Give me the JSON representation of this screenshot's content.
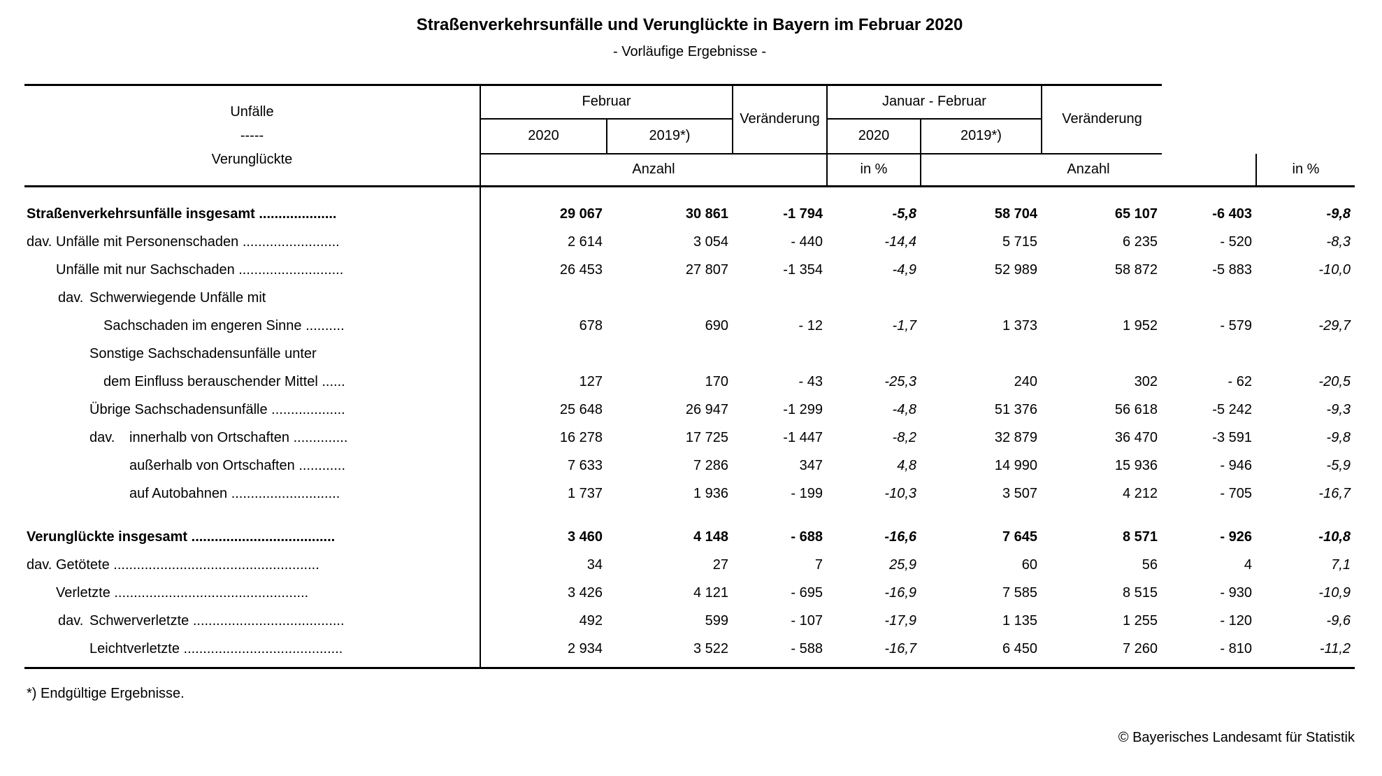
{
  "title": "Straßenverkehrsunfälle und Verunglückte in Bayern im Februar 2020",
  "subtitle": "- Vorläufige Ergebnisse -",
  "table": {
    "header": {
      "stub": [
        "Unfälle",
        "-----",
        "Verunglückte"
      ],
      "group_februar": "Februar",
      "group_januar_februar": "Januar - Februar",
      "group_veraenderung": "Veränderung",
      "years": [
        "2020",
        "2019*)"
      ],
      "unit_anzahl": "Anzahl",
      "unit_in_percent": "in %"
    },
    "rows": [
      {
        "bold": true,
        "prefix": "",
        "prefix_indent": "i0",
        "label": "Straßenverkehrsunfälle insgesamt ....................",
        "indent": "i0",
        "label2": null,
        "indent2": null,
        "values": [
          "29 067",
          "30 861",
          "-1 794",
          "-5,8",
          "58 704",
          "65 107",
          "-6 403",
          "-9,8"
        ]
      },
      {
        "bold": false,
        "prefix": "dav.",
        "prefix_indent": "i0",
        "label": "Unfälle mit Personenschaden .........................",
        "indent": "i1",
        "label2": null,
        "indent2": null,
        "values": [
          "2 614",
          "3 054",
          "- 440",
          "-14,4",
          "5 715",
          "6 235",
          "- 520",
          "-8,3"
        ]
      },
      {
        "bold": false,
        "prefix": "",
        "prefix_indent": "i1",
        "label": "Unfälle mit nur Sachschaden ...........................",
        "indent": "i1",
        "label2": null,
        "indent2": null,
        "values": [
          "26 453",
          "27 807",
          "-1 354",
          "-4,9",
          "52 989",
          "58 872",
          "-5 883",
          "-10,0"
        ]
      },
      {
        "bold": false,
        "prefix": "dav.",
        "prefix_indent": "i1",
        "label": "Schwerwiegende Unfälle mit",
        "indent": "i2",
        "label2": "Sachschaden im engeren Sinne ..........",
        "indent2": "i2b",
        "values": [
          "678",
          "690",
          "- 12",
          "-1,7",
          "1 373",
          "1 952",
          "- 579",
          "-29,7"
        ]
      },
      {
        "bold": false,
        "prefix": "",
        "prefix_indent": "i2",
        "label": "Sonstige Sachschadensunfälle unter",
        "indent": "i2",
        "label2": "dem Einfluss berauschender Mittel ......",
        "indent2": "i2b",
        "values": [
          "127",
          "170",
          "- 43",
          "-25,3",
          "240",
          "302",
          "- 62",
          "-20,5"
        ]
      },
      {
        "bold": false,
        "prefix": "",
        "prefix_indent": "i2",
        "label": "Übrige Sachschadensunfälle ...................",
        "indent": "i2",
        "label2": null,
        "indent2": null,
        "values": [
          "25 648",
          "26 947",
          "-1 299",
          "-4,8",
          "51 376",
          "56 618",
          "-5 242",
          "-9,3"
        ]
      },
      {
        "bold": false,
        "prefix": "dav.",
        "prefix_indent": "i2",
        "label": "innerhalb von Ortschaften ..............",
        "indent": "i3",
        "label2": null,
        "indent2": null,
        "values": [
          "16 278",
          "17 725",
          "-1 447",
          "-8,2",
          "32 879",
          "36 470",
          "-3 591",
          "-9,8"
        ]
      },
      {
        "bold": false,
        "prefix": "",
        "prefix_indent": "i3",
        "label": "außerhalb von Ortschaften ............",
        "indent": "i3",
        "label2": null,
        "indent2": null,
        "values": [
          "7 633",
          "7 286",
          "347",
          "4,8",
          "14 990",
          "15 936",
          "- 946",
          "-5,9"
        ]
      },
      {
        "bold": false,
        "prefix": "",
        "prefix_indent": "i3",
        "label": "auf Autobahnen ............................",
        "indent": "i3",
        "label2": null,
        "indent2": null,
        "values": [
          "1 737",
          "1 936",
          "- 199",
          "-10,3",
          "3 507",
          "4 212",
          "- 705",
          "-16,7"
        ]
      },
      {
        "bold": true,
        "prefix": "",
        "prefix_indent": "i0",
        "label": "Verunglückte insgesamt .....................................",
        "indent": "i0",
        "label2": null,
        "indent2": null,
        "gap_before": true,
        "values": [
          "3 460",
          "4 148",
          "- 688",
          "-16,6",
          "7 645",
          "8 571",
          "- 926",
          "-10,8"
        ]
      },
      {
        "bold": false,
        "prefix": "dav.",
        "prefix_indent": "i0",
        "label": "Getötete .....................................................",
        "indent": "i1",
        "label2": null,
        "indent2": null,
        "values": [
          "34",
          "27",
          "7",
          "25,9",
          "60",
          "56",
          "4",
          "7,1"
        ]
      },
      {
        "bold": false,
        "prefix": "",
        "prefix_indent": "i1",
        "label": "Verletzte ..................................................",
        "indent": "i1",
        "label2": null,
        "indent2": null,
        "values": [
          "3 426",
          "4 121",
          "- 695",
          "-16,9",
          "7 585",
          "8 515",
          "- 930",
          "-10,9"
        ]
      },
      {
        "bold": false,
        "prefix": "dav.",
        "prefix_indent": "i1",
        "label": "Schwerverletzte .......................................",
        "indent": "i2",
        "label2": null,
        "indent2": null,
        "values": [
          "492",
          "599",
          "- 107",
          "-17,9",
          "1 135",
          "1 255",
          "- 120",
          "-9,6"
        ]
      },
      {
        "bold": false,
        "prefix": "",
        "prefix_indent": "i2",
        "label": "Leichtverletzte .........................................",
        "indent": "i2",
        "label2": null,
        "indent2": null,
        "values": [
          "2 934",
          "3 522",
          "- 588",
          "-16,7",
          "6 450",
          "7 260",
          "- 810",
          "-11,2"
        ]
      }
    ]
  },
  "footnote": "*) Endgültige Ergebnisse.",
  "copyright": "© Bayerisches Landesamt für Statistik"
}
